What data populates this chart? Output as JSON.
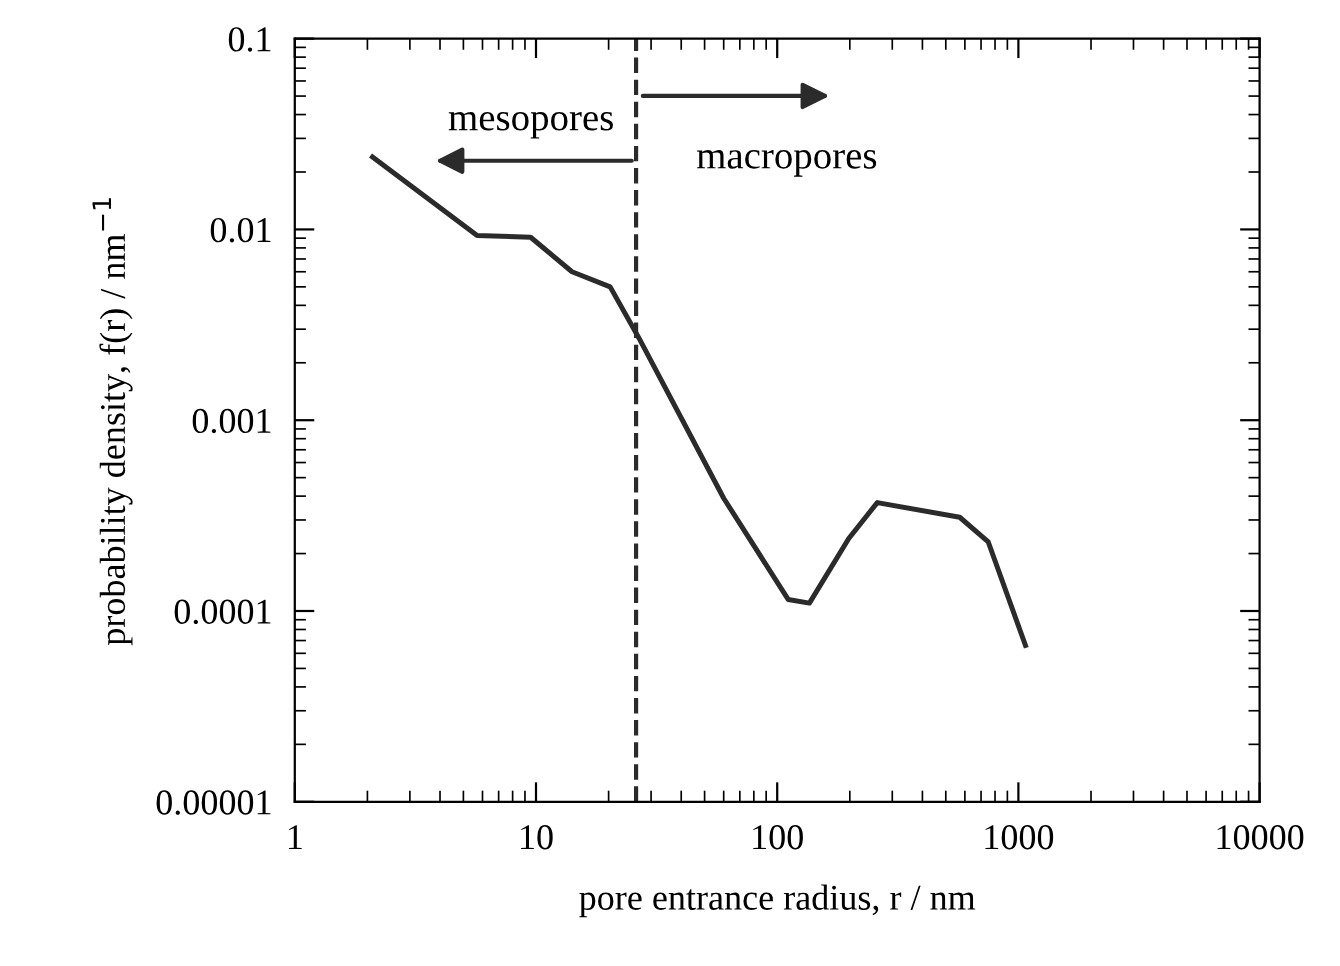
{
  "chart_data": {
    "type": "line",
    "xlabel": "pore entrance radius, r / nm",
    "ylabel": "probability density, f(r) / nm$^{−1}$",
    "log": "xy",
    "grid": false,
    "legend": false,
    "marker": "none",
    "line_style": "solid",
    "xlim": [
      1,
      10000
    ],
    "xticks": [
      1,
      10,
      100,
      1000,
      10000
    ],
    "ylim": [
      1e-05,
      0.1
    ],
    "yticks": [
      {
        "value": 1e-05,
        "label": "0.00001"
      },
      {
        "value": 0.0001,
        "label": "0.0001"
      },
      {
        "value": 0.001,
        "label": "0.001"
      },
      {
        "value": 0.01,
        "label": "0.01"
      },
      {
        "value": 0.1,
        "label": "0.1"
      }
    ],
    "series": [
      {
        "color": "#2b2b2b",
        "x": [
          2.1,
          5.7,
          9.5,
          14.1,
          20.3,
          26.7,
          60,
          111,
          136,
          198,
          260,
          571,
          750,
          1070
        ],
        "values": [
          0.024,
          0.0093,
          0.0091,
          0.006,
          0.005,
          0.0027,
          0.00039,
          0.000115,
          0.00011,
          0.00024,
          0.00037,
          0.00031,
          0.00023,
          6.6e-05
        ]
      }
    ],
    "ref_lines": [
      {
        "axis": "x",
        "value": 26,
        "line_style": "dashed",
        "color": "#2b2b2b"
      }
    ],
    "annotations": [
      "mesopores",
      "macropores"
    ]
  }
}
